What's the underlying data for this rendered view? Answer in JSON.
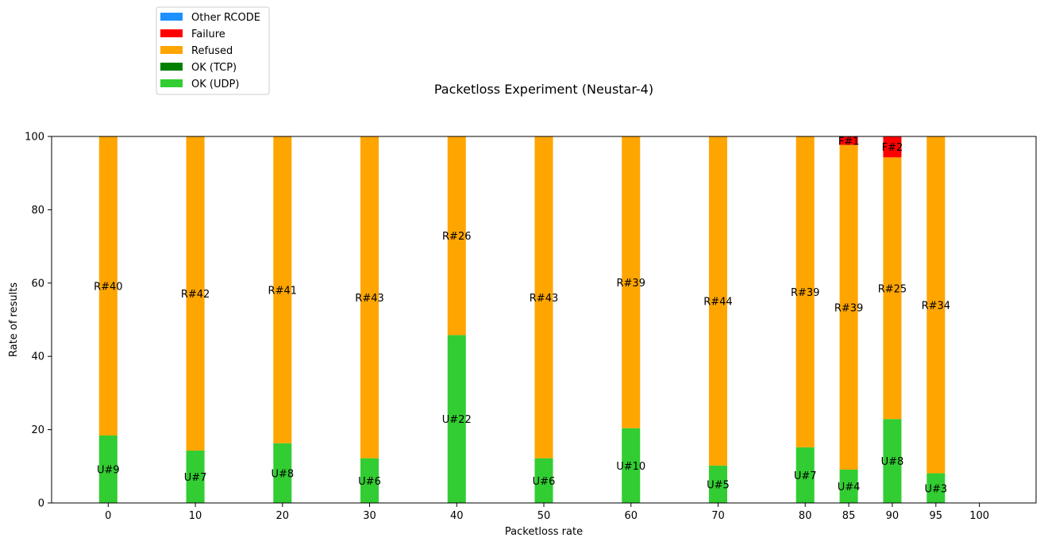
{
  "chart_data": {
    "type": "bar",
    "stacked": true,
    "title": "Packetloss Experiment (Neustar-4)",
    "xlabel": "Packetloss rate",
    "ylabel": "Rate of results",
    "ylim": [
      0,
      100
    ],
    "xlim": [
      -6.5,
      106.5
    ],
    "yticks": [
      0,
      20,
      40,
      60,
      80,
      100
    ],
    "xticks": [
      0,
      10,
      20,
      30,
      40,
      50,
      60,
      70,
      80,
      85,
      90,
      95,
      100
    ],
    "bar_width": 2.1,
    "legend_position": "above-left",
    "legend": [
      "Other RCODE",
      "Failure",
      "Refused",
      "OK (TCP)",
      "OK (UDP)"
    ],
    "colors": {
      "Other RCODE": "#1e90ff",
      "Failure": "#ff0000",
      "Refused": "#ffa500",
      "OK (TCP)": "#008000",
      "OK (UDP)": "#32cd32"
    },
    "x": [
      0,
      10,
      20,
      30,
      40,
      50,
      60,
      70,
      80,
      85,
      90,
      95
    ],
    "series": [
      {
        "name": "OK (UDP)",
        "values": [
          18.4,
          14.3,
          16.3,
          12.2,
          45.8,
          12.2,
          20.4,
          10.2,
          15.2,
          9.1,
          22.9,
          8.1
        ],
        "labels": [
          "U#9",
          "U#7",
          "U#8",
          "U#6",
          "U#22",
          "U#6",
          "U#10",
          "U#5",
          "U#7",
          "U#4",
          "U#8",
          "U#3"
        ]
      },
      {
        "name": "OK (TCP)",
        "values": [
          0,
          0,
          0,
          0,
          0,
          0,
          0,
          0,
          0,
          0,
          0,
          0
        ],
        "labels": [
          "",
          "",
          "",
          "",
          "",
          "",
          "",
          "",
          "",
          "",
          "",
          ""
        ]
      },
      {
        "name": "Refused",
        "values": [
          81.6,
          85.7,
          83.7,
          87.8,
          54.2,
          87.8,
          79.6,
          89.8,
          84.8,
          88.6,
          71.4,
          91.9
        ],
        "labels": [
          "R#40",
          "R#42",
          "R#41",
          "R#43",
          "R#26",
          "R#43",
          "R#39",
          "R#44",
          "R#39",
          "R#39",
          "R#25",
          "R#34"
        ]
      },
      {
        "name": "Failure",
        "values": [
          0,
          0,
          0,
          0,
          0,
          0,
          0,
          0,
          0,
          2.3,
          5.7,
          0
        ],
        "labels": [
          "",
          "",
          "",
          "",
          "",
          "",
          "",
          "",
          "",
          "F#1",
          "F#2",
          ""
        ]
      },
      {
        "name": "Other RCODE",
        "values": [
          0,
          0,
          0,
          0,
          0,
          0,
          0,
          0,
          0,
          0,
          0,
          0
        ],
        "labels": [
          "",
          "",
          "",
          "",
          "",
          "",
          "",
          "",
          "",
          "",
          "",
          ""
        ]
      }
    ]
  }
}
